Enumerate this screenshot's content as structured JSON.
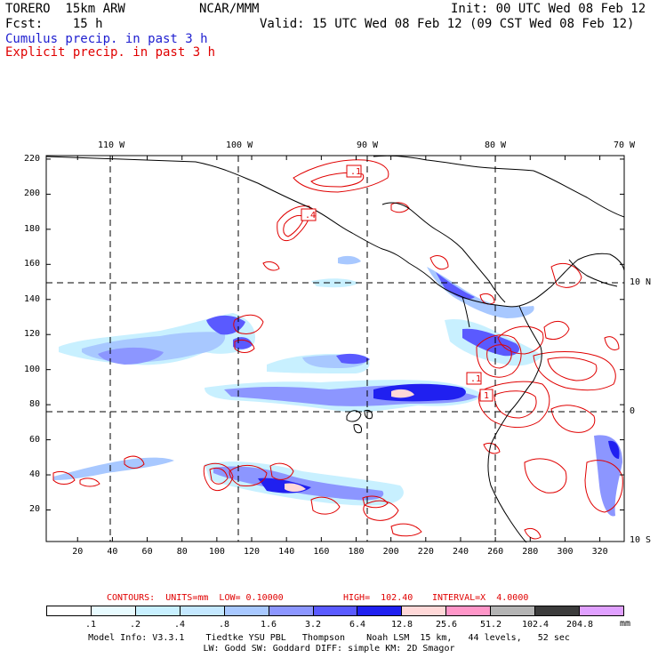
{
  "header": {
    "model": "TORERO  15km ARW",
    "org": "NCAR/MMM",
    "init": "Init: 00 UTC Wed 08 Feb 12",
    "fcst": "Fcst:    15 h",
    "valid": "Valid: 15 UTC Wed 08 Feb 12 (09 CST Wed 08 Feb 12)",
    "cumulus": "Cumulus precip. in past 3 h",
    "explicit": "Explicit precip. in past 3 h"
  },
  "axes": {
    "lon_labels": [
      "110 W",
      "100 W",
      "90 W",
      "80 W",
      "70 W"
    ],
    "lat_labels": [
      "10 N",
      "0",
      "10 S"
    ],
    "y_ticks": [
      "220",
      "200",
      "180",
      "160",
      "140",
      "120",
      "100",
      "80",
      "60",
      "40",
      "20"
    ],
    "x_ticks": [
      "20",
      "40",
      "60",
      "80",
      "100",
      "120",
      "140",
      "160",
      "180",
      "200",
      "220",
      "240",
      "260",
      "280",
      "300",
      "320"
    ]
  },
  "box_labels": [
    ".1",
    ".4",
    ".1",
    "1"
  ],
  "contours": {
    "label": "CONTOURS:  UNITS=mm  LOW= 0.10000",
    "high": "HIGH=  102.40",
    "interval": "INTERVAL=X  4.0000"
  },
  "colorbar": {
    "colors": [
      "#ffffff",
      "#e8fbff",
      "#c8f0ff",
      "#c4e8ff",
      "#a8c8ff",
      "#8c96ff",
      "#5a5aff",
      "#2020f0",
      "#ffd8d8",
      "#ff96c8",
      "#b4b4b4",
      "#3c3c3c",
      "#e0a0ff"
    ],
    "ticks": [
      ".1",
      ".2",
      ".4",
      ".8",
      "1.6",
      "3.2",
      "6.4",
      "12.8",
      "25.6",
      "51.2",
      "102.4",
      "204.8"
    ],
    "unit": "mm"
  },
  "footer": {
    "line1": "Model Info: V3.3.1    Tiedtke YSU PBL   Thompson    Noah LSM  15 km,   44 levels,   52 sec",
    "line2": "LW: Godd SW: Goddard DIFF: simple KM: 2D Smagor"
  }
}
